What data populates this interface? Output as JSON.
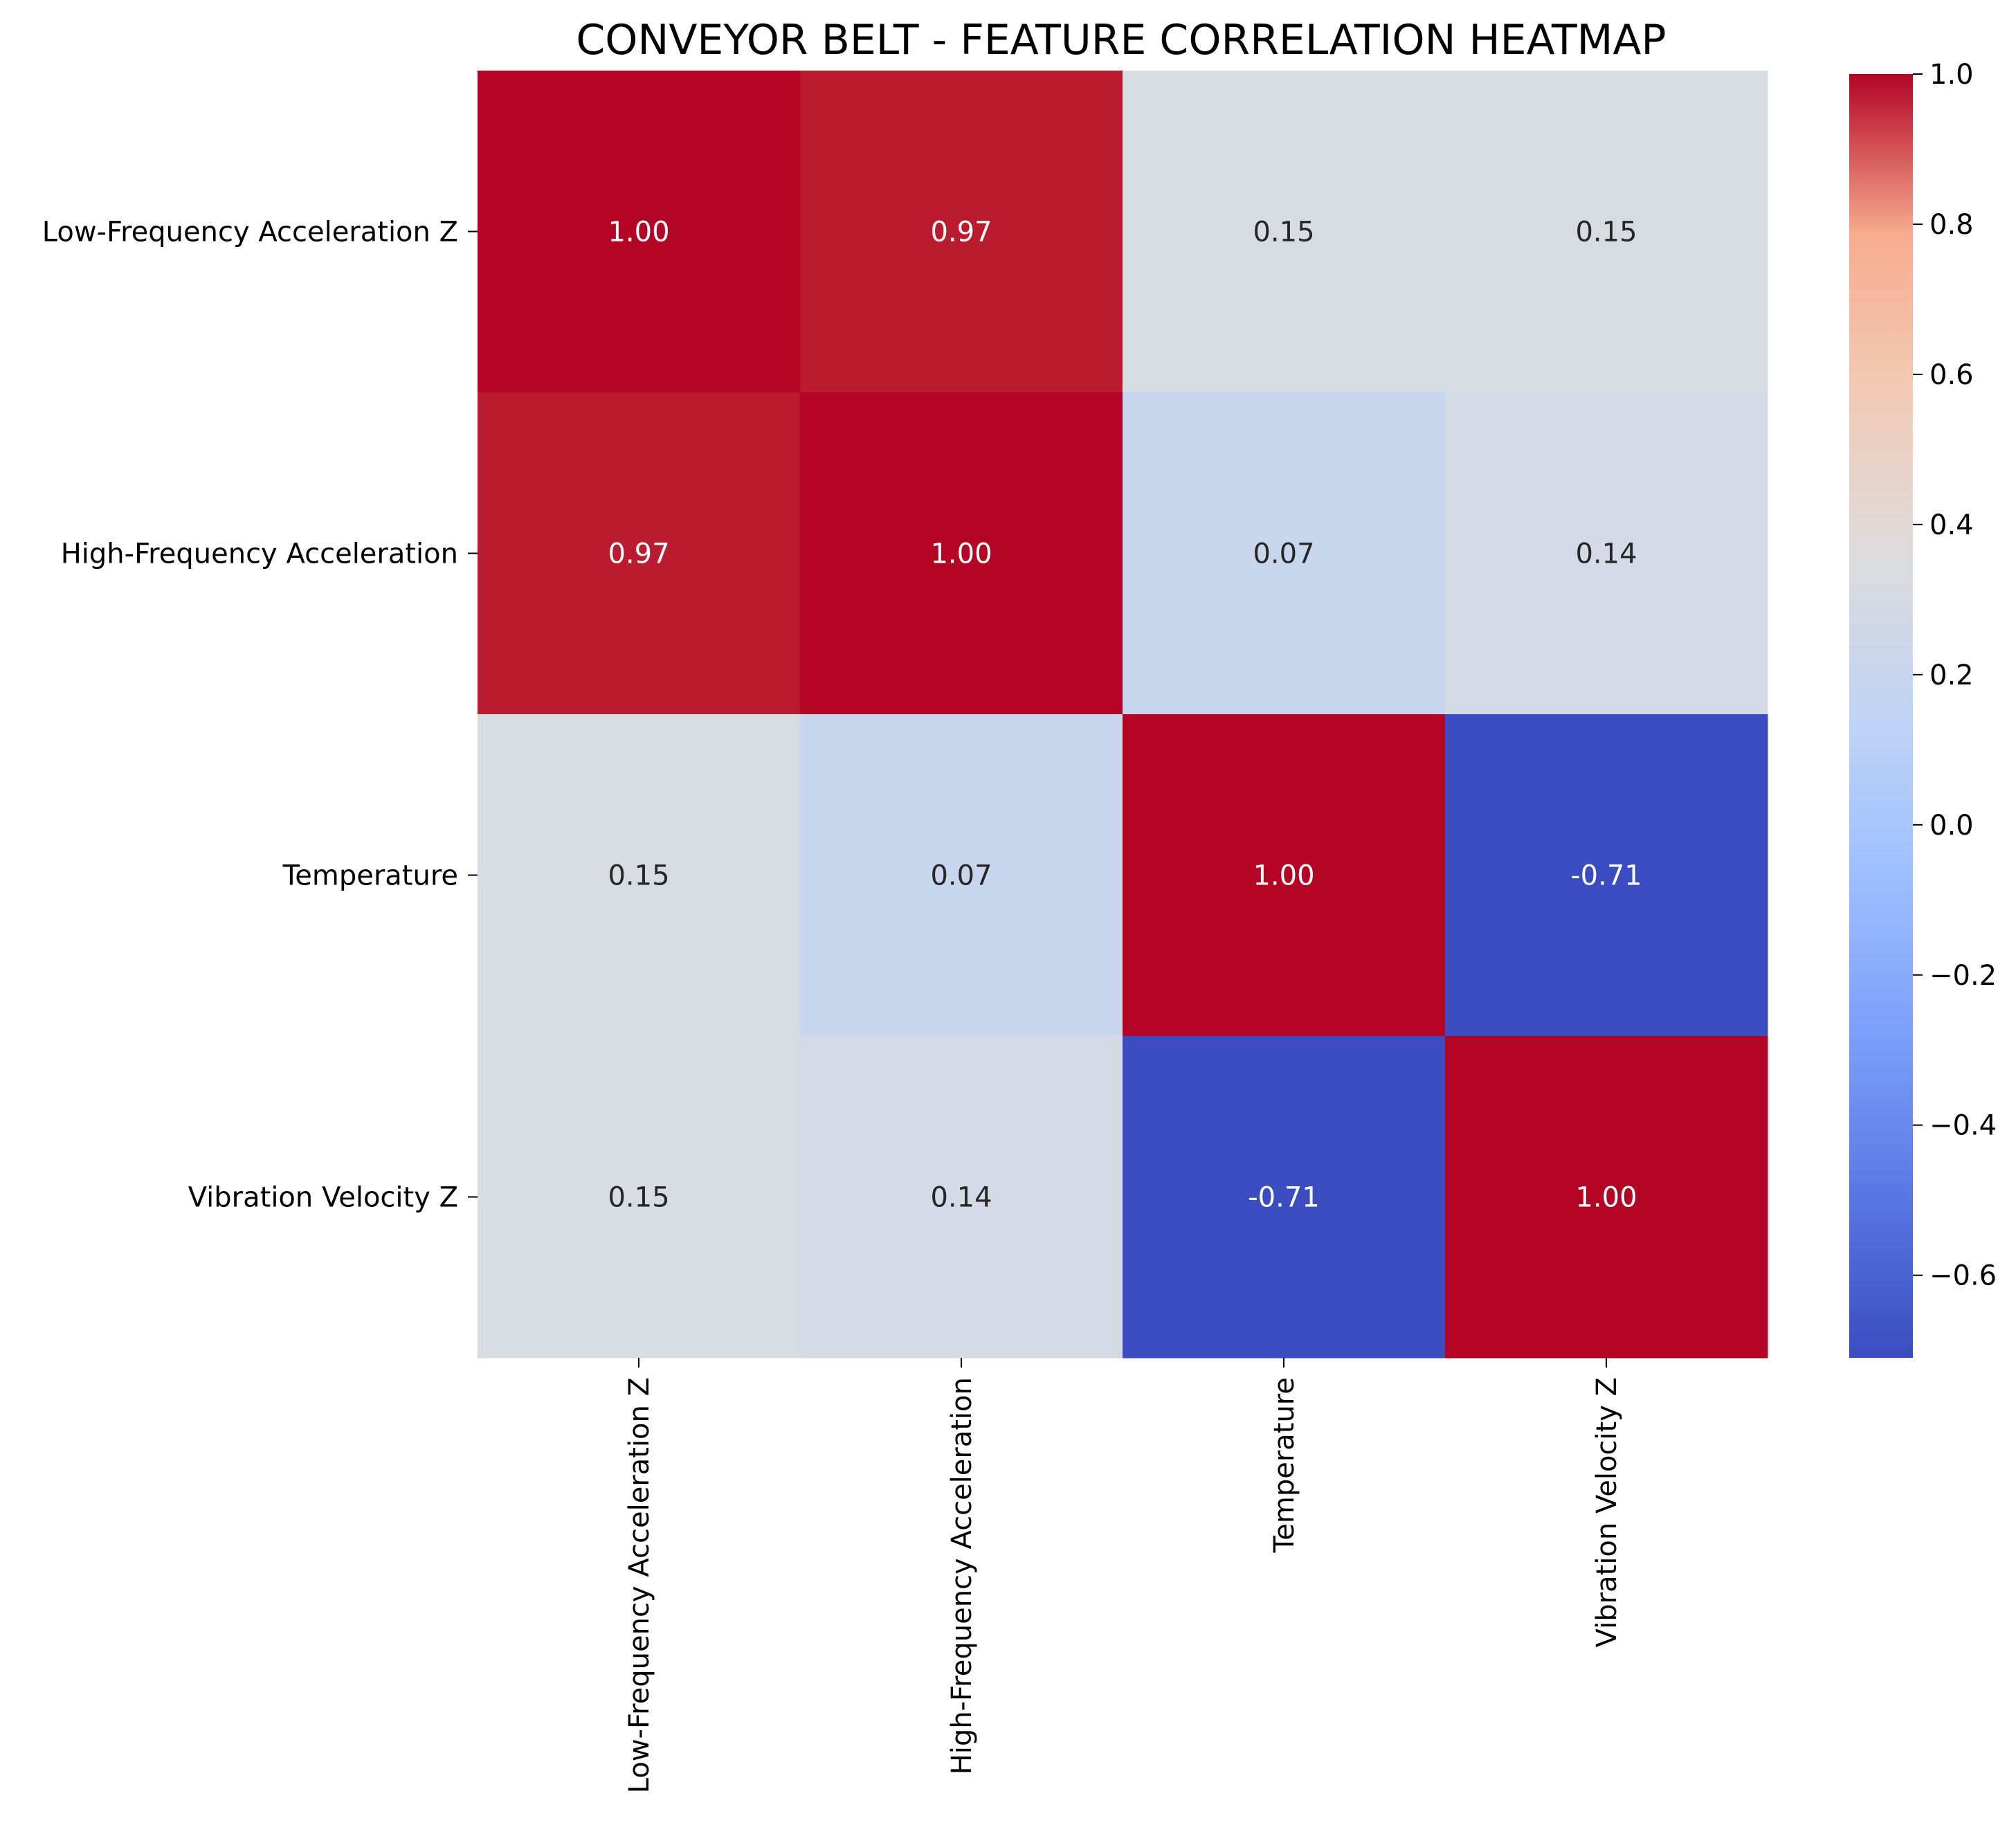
{
  "chart_data": {
    "type": "heatmap",
    "title": "CONVEYOR BELT - FEATURE CORRELATION HEATMAP",
    "row_labels": [
      "Low-Frequency Acceleration Z",
      "High-Frequency Acceleration",
      "Temperature",
      "Vibration Velocity Z"
    ],
    "col_labels": [
      "Low-Frequency Acceleration Z",
      "High-Frequency Acceleration",
      "Temperature",
      "Vibration Velocity Z"
    ],
    "values": [
      [
        1.0,
        0.97,
        0.15,
        0.15
      ],
      [
        0.97,
        1.0,
        0.07,
        0.14
      ],
      [
        0.15,
        0.07,
        1.0,
        -0.71
      ],
      [
        0.15,
        0.14,
        -0.71,
        1.0
      ]
    ],
    "cell_labels": [
      [
        "1.00",
        "0.97",
        "0.15",
        "0.15"
      ],
      [
        "0.97",
        "1.00",
        "0.07",
        "0.14"
      ],
      [
        "0.15",
        "0.07",
        "1.00",
        "-0.71"
      ],
      [
        "0.15",
        "0.14",
        "-0.71",
        "1.00"
      ]
    ],
    "colormap": "coolwarm",
    "colorbar": {
      "vmin": -0.71,
      "vmax": 1.0,
      "ticks": [
        -0.6,
        -0.4,
        -0.2,
        0.0,
        0.2,
        0.4,
        0.6,
        0.8,
        1.0
      ],
      "tick_labels": [
        "−0.6",
        "−0.4",
        "−0.2",
        "0.0",
        "0.2",
        "0.4",
        "0.6",
        "0.8",
        "1.0"
      ]
    },
    "colors": {
      "cool_end": "#3b4cc0",
      "neutral": "#dddddd",
      "warm_end": "#b40426",
      "text_dark": "#262626",
      "text_light": "#ffffff"
    }
  }
}
